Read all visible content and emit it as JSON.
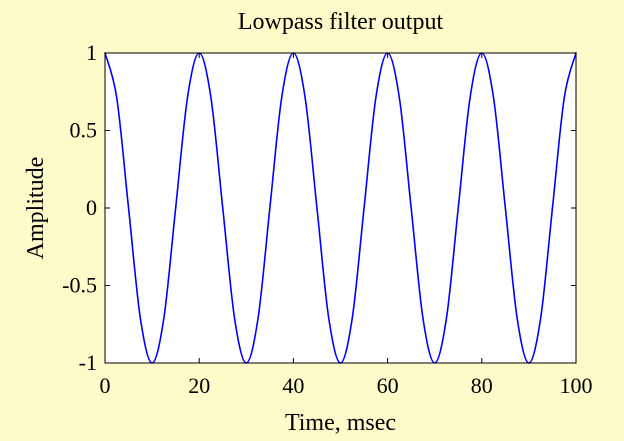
{
  "chart_data": {
    "type": "line",
    "title": "Lowpass filter output",
    "xlabel": "Time, msec",
    "ylabel": "Amplitude",
    "xlim": [
      0,
      100
    ],
    "ylim": [
      -1,
      1
    ],
    "x_ticks": [
      0,
      20,
      40,
      60,
      80,
      100
    ],
    "y_ticks": [
      1,
      0.5,
      0,
      -0.5,
      -1
    ],
    "x_tick_labels": [
      "0",
      "20",
      "40",
      "60",
      "80",
      "100"
    ],
    "y_tick_labels": [
      "1",
      "0.5",
      "0",
      "-0.5",
      "-1"
    ],
    "grid": false,
    "series": [
      {
        "color": "#0000ff",
        "x": [
          0,
          2.5,
          5,
          7.5,
          10,
          12.5,
          15,
          17.5,
          20,
          22.5,
          25,
          27.5,
          30,
          32.5,
          35,
          37.5,
          40,
          42.5,
          45,
          47.5,
          50,
          52.5,
          55,
          57.5,
          60,
          62.5,
          65,
          67.5,
          70,
          72.5,
          75,
          77.5,
          80,
          82.5,
          85,
          87.5,
          90,
          92.5,
          95,
          97.5,
          100
        ],
        "values": [
          1,
          0.71,
          0,
          -0.71,
          -1,
          -0.71,
          0,
          0.71,
          1,
          0.71,
          0,
          -0.71,
          -1,
          -0.71,
          0,
          0.71,
          1,
          0.71,
          0,
          -0.71,
          -1,
          -0.71,
          0,
          0.71,
          1,
          0.71,
          0,
          -0.71,
          -1,
          -0.71,
          0,
          0.71,
          1,
          0.71,
          0,
          -0.71,
          -1,
          -0.71,
          0,
          0.71,
          1
        ]
      }
    ]
  }
}
